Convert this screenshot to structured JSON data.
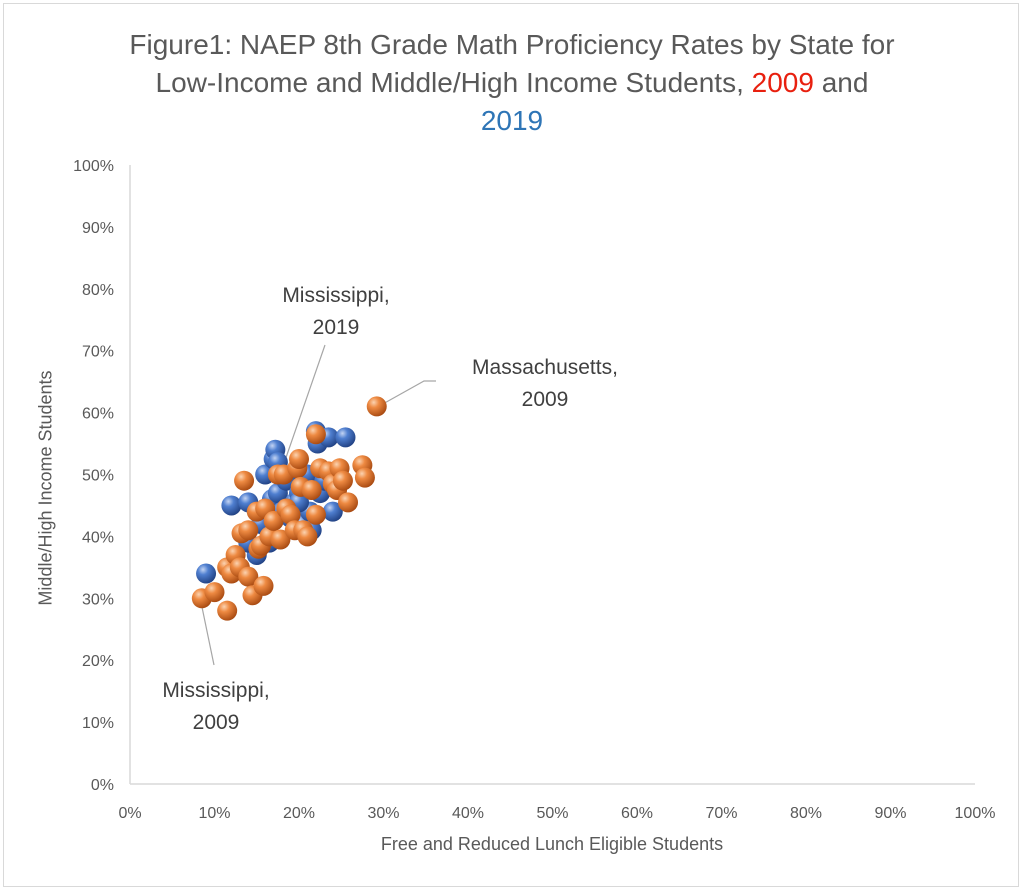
{
  "title": {
    "line1": "Figure1: NAEP 8th Grade Math Proficiency Rates by State for",
    "line2_start": "Low-Income and Middle/High Income Students, ",
    "year_a": "2009",
    "line2_end": " and",
    "year_b": "2019"
  },
  "colors": {
    "year_a_text": "#e8200f",
    "year_b_text": "#2e75b6",
    "series_2009": "#ed7d31",
    "series_2019": "#4472c4"
  },
  "annotations": {
    "ms2019_line1": "Mississippi,",
    "ms2019_line2": "2019",
    "ma2009_line1": "Massachusetts,",
    "ma2009_line2": "2009",
    "ms2009_line1": "Mississippi,",
    "ms2009_line2": "2009"
  },
  "chart_data": {
    "type": "scatter",
    "title": "Figure1: NAEP 8th Grade Math Proficiency Rates by State for Low-Income and Middle/High Income Students, 2009 and 2019",
    "xlabel": "Free and Reduced Lunch Eligible Students",
    "ylabel": "Middle/High Income Students",
    "xlim": [
      0,
      1
    ],
    "ylim": [
      0,
      1
    ],
    "x_ticks": [
      "0%",
      "10%",
      "20%",
      "30%",
      "40%",
      "50%",
      "60%",
      "70%",
      "80%",
      "90%",
      "100%"
    ],
    "y_ticks": [
      "0%",
      "10%",
      "20%",
      "30%",
      "40%",
      "50%",
      "60%",
      "70%",
      "80%",
      "90%",
      "100%"
    ],
    "grid": false,
    "legend": "none",
    "series": [
      {
        "color": "#4472c4",
        "points": [
          [
            0.09,
            0.34
          ],
          [
            0.12,
            0.45
          ],
          [
            0.14,
            0.455
          ],
          [
            0.15,
            0.37
          ],
          [
            0.155,
            0.42
          ],
          [
            0.16,
            0.5
          ],
          [
            0.165,
            0.39
          ],
          [
            0.168,
            0.46
          ],
          [
            0.17,
            0.525
          ],
          [
            0.172,
            0.54
          ],
          [
            0.175,
            0.47
          ],
          [
            0.18,
            0.44
          ],
          [
            0.185,
            0.49
          ],
          [
            0.19,
            0.43
          ],
          [
            0.195,
            0.455
          ],
          [
            0.2,
            0.47
          ],
          [
            0.205,
            0.42
          ],
          [
            0.21,
            0.5
          ],
          [
            0.213,
            0.44
          ],
          [
            0.215,
            0.41
          ],
          [
            0.22,
            0.57
          ],
          [
            0.222,
            0.55
          ],
          [
            0.225,
            0.47
          ],
          [
            0.23,
            0.49
          ],
          [
            0.235,
            0.56
          ],
          [
            0.24,
            0.44
          ],
          [
            0.245,
            0.5
          ],
          [
            0.255,
            0.56
          ],
          [
            0.14,
            0.39
          ],
          [
            0.2,
            0.455
          ],
          [
            0.175,
            0.52
          ]
        ]
      },
      {
        "color": "#ed7d31",
        "points": [
          [
            0.085,
            0.3
          ],
          [
            0.1,
            0.31
          ],
          [
            0.115,
            0.28
          ],
          [
            0.115,
            0.35
          ],
          [
            0.12,
            0.34
          ],
          [
            0.125,
            0.37
          ],
          [
            0.13,
            0.35
          ],
          [
            0.132,
            0.405
          ],
          [
            0.135,
            0.49
          ],
          [
            0.14,
            0.41
          ],
          [
            0.14,
            0.335
          ],
          [
            0.145,
            0.305
          ],
          [
            0.15,
            0.44
          ],
          [
            0.152,
            0.38
          ],
          [
            0.155,
            0.385
          ],
          [
            0.158,
            0.32
          ],
          [
            0.16,
            0.445
          ],
          [
            0.165,
            0.4
          ],
          [
            0.17,
            0.425
          ],
          [
            0.175,
            0.5
          ],
          [
            0.178,
            0.395
          ],
          [
            0.182,
            0.5
          ],
          [
            0.185,
            0.445
          ],
          [
            0.19,
            0.435
          ],
          [
            0.195,
            0.41
          ],
          [
            0.198,
            0.51
          ],
          [
            0.2,
            0.525
          ],
          [
            0.202,
            0.48
          ],
          [
            0.205,
            0.41
          ],
          [
            0.21,
            0.4
          ],
          [
            0.215,
            0.475
          ],
          [
            0.22,
            0.435
          ],
          [
            0.22,
            0.565
          ],
          [
            0.225,
            0.51
          ],
          [
            0.235,
            0.505
          ],
          [
            0.24,
            0.485
          ],
          [
            0.245,
            0.475
          ],
          [
            0.248,
            0.51
          ],
          [
            0.252,
            0.49
          ],
          [
            0.258,
            0.455
          ],
          [
            0.275,
            0.515
          ],
          [
            0.278,
            0.495
          ],
          [
            0.292,
            0.61
          ]
        ]
      }
    ]
  }
}
